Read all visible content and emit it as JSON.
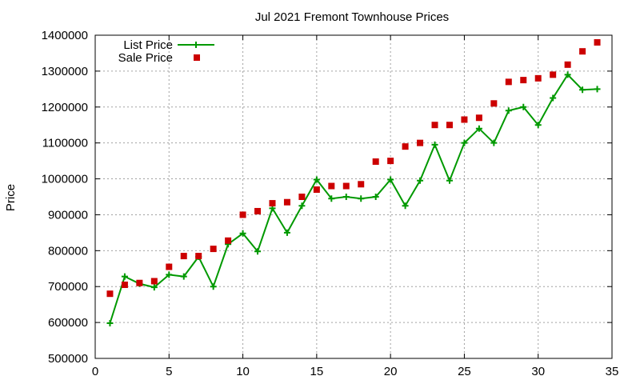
{
  "chart_data": {
    "type": "line",
    "title": "Jul 2021 Fremont Townhouse Prices",
    "xlabel": "",
    "ylabel": "Price",
    "xlim": [
      0,
      35
    ],
    "ylim": [
      500000,
      1400000
    ],
    "x_ticks": [
      "0",
      "5",
      "10",
      "15",
      "20",
      "25",
      "30",
      "35"
    ],
    "y_ticks": [
      "500000",
      "600000",
      "700000",
      "800000",
      "900000",
      "1000000",
      "1100000",
      "1200000",
      "1300000",
      "1400000"
    ],
    "grid": true,
    "legend_position": "top-left",
    "series": [
      {
        "name": "List Price",
        "style": "line+cross",
        "color": "#009900",
        "x": [
          1,
          2,
          3,
          4,
          5,
          6,
          7,
          8,
          9,
          10,
          11,
          12,
          13,
          14,
          15,
          16,
          17,
          18,
          19,
          20,
          21,
          22,
          23,
          24,
          25,
          26,
          27,
          28,
          29,
          30,
          31,
          32,
          33,
          34
        ],
        "values": [
          598000,
          728000,
          708000,
          698000,
          733000,
          728000,
          783000,
          700000,
          818000,
          848000,
          798000,
          918000,
          850000,
          925000,
          998000,
          945000,
          950000,
          945000,
          950000,
          998000,
          925000,
          995000,
          1095000,
          995000,
          1100000,
          1140000,
          1100000,
          1190000,
          1200000,
          1150000,
          1225000,
          1290000,
          1248000,
          1250000
        ]
      },
      {
        "name": "Sale Price",
        "style": "square",
        "color": "#cc0000",
        "x": [
          1,
          2,
          3,
          4,
          5,
          6,
          7,
          8,
          9,
          10,
          11,
          12,
          13,
          14,
          15,
          16,
          17,
          18,
          19,
          20,
          21,
          22,
          23,
          24,
          25,
          26,
          27,
          28,
          29,
          30,
          31,
          32,
          33,
          34
        ],
        "values": [
          680000,
          705000,
          710000,
          715000,
          755000,
          785000,
          785000,
          805000,
          828000,
          900000,
          910000,
          932000,
          935000,
          950000,
          970000,
          980000,
          980000,
          985000,
          1048000,
          1050000,
          1090000,
          1100000,
          1150000,
          1150000,
          1165000,
          1170000,
          1210000,
          1270000,
          1275000,
          1280000,
          1290000,
          1318000,
          1355000,
          1380000
        ]
      }
    ]
  }
}
